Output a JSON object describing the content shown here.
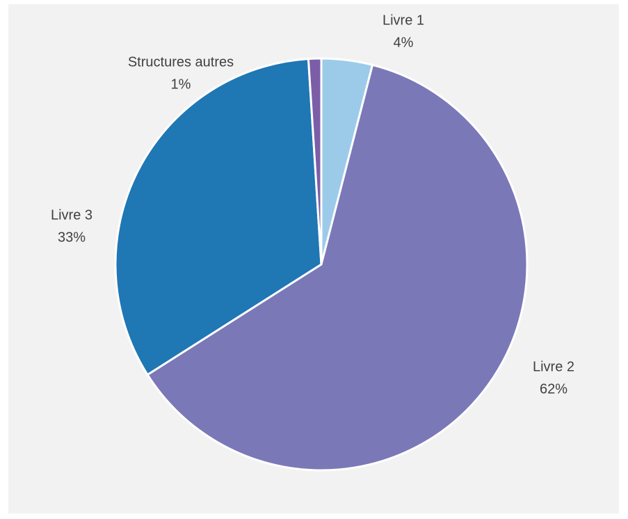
{
  "chart_data": {
    "type": "pie",
    "title": "",
    "slices": [
      {
        "label": "Livre 1",
        "value": 4,
        "value_label": "4%",
        "color": "#9ccbea"
      },
      {
        "label": "Livre 2",
        "value": 62,
        "value_label": "62%",
        "color": "#7b78b8"
      },
      {
        "label": "Livre 3",
        "value": 33,
        "value_label": "33%",
        "color": "#1f77b4"
      },
      {
        "label": "Structures autres",
        "value": 1,
        "value_label": "1%",
        "color": "#7b5ea7"
      }
    ],
    "start_angle": "12 o'clock",
    "direction": "clockwise",
    "legend": "none",
    "data_labels": "outside"
  }
}
